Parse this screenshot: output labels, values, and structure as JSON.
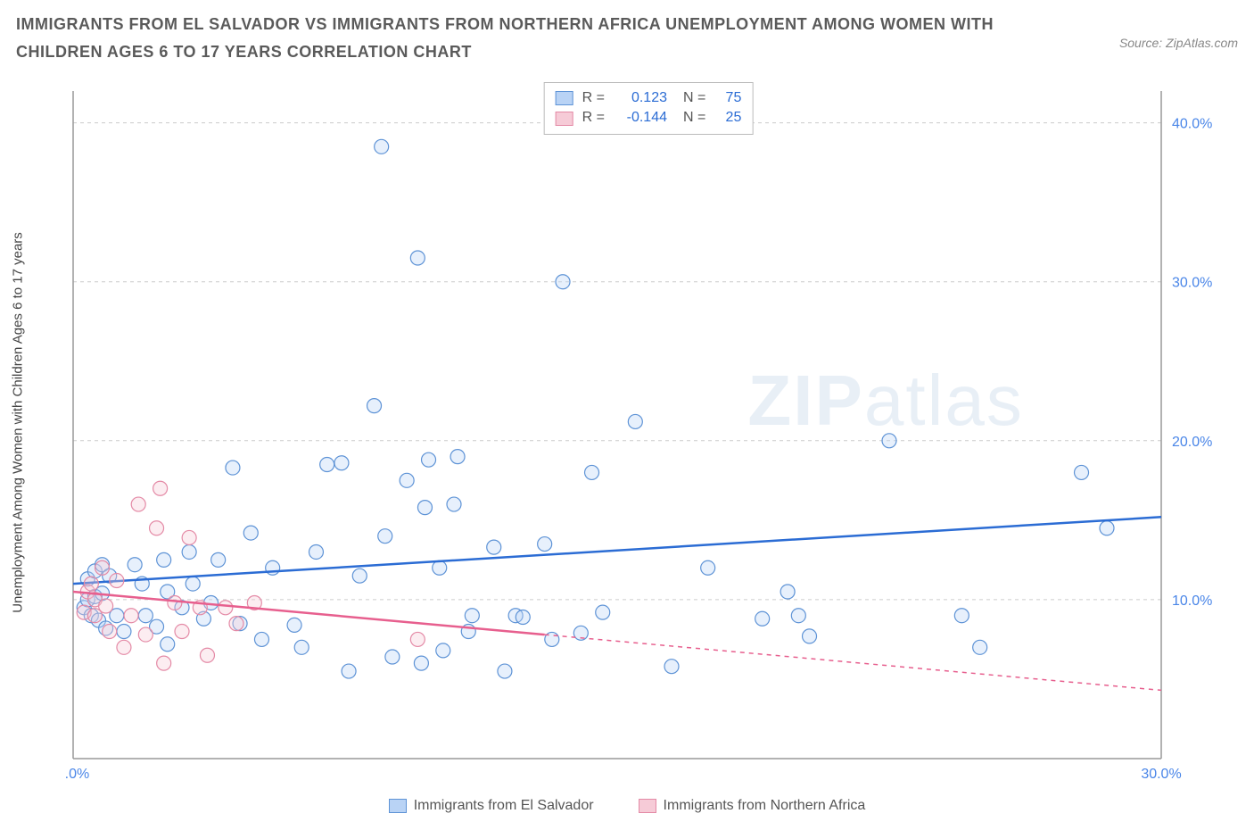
{
  "title": "IMMIGRANTS FROM EL SALVADOR VS IMMIGRANTS FROM NORTHERN AFRICA UNEMPLOYMENT AMONG WOMEN WITH CHILDREN AGES 6 TO 17 YEARS CORRELATION CHART",
  "source_label": "Source: ZipAtlas.com",
  "y_axis_label": "Unemployment Among Women with Children Ages 6 to 17 years",
  "watermark_bold": "ZIP",
  "watermark_light": "atlas",
  "chart": {
    "type": "scatter",
    "xlim": [
      0,
      30
    ],
    "ylim": [
      0,
      42
    ],
    "x_ticks": [
      {
        "v": 0,
        "l": "0.0%"
      },
      {
        "v": 30,
        "l": "30.0%"
      }
    ],
    "y_ticks": [
      {
        "v": 10,
        "l": "10.0%"
      },
      {
        "v": 20,
        "l": "20.0%"
      },
      {
        "v": 30,
        "l": "30.0%"
      },
      {
        "v": 40,
        "l": "40.0%"
      }
    ],
    "y_grid": [
      10,
      20,
      30,
      40
    ],
    "background_color": "#ffffff",
    "grid_color": "#cccccc",
    "axis_color": "#999999",
    "tick_label_color": "#4a86e8",
    "marker_radius": 8,
    "series": [
      {
        "key": "salvador",
        "label": "Immigrants from El Salvador",
        "fill": "#b9d3f5",
        "stroke": "#5e93d6",
        "R": "0.123",
        "N": "75",
        "trend_color": "#2b6cd4",
        "trend": {
          "x0": 0,
          "y0": 11.0,
          "x_solid_end": 30,
          "y_solid_end": 15.2,
          "x1": 30,
          "y1": 15.2,
          "dash_beyond": false
        },
        "points": [
          [
            0.3,
            9.5
          ],
          [
            0.4,
            10.0
          ],
          [
            0.4,
            11.3
          ],
          [
            0.5,
            9.0
          ],
          [
            0.6,
            10.2
          ],
          [
            0.6,
            11.8
          ],
          [
            0.7,
            8.7
          ],
          [
            0.8,
            12.2
          ],
          [
            0.8,
            10.4
          ],
          [
            0.9,
            8.2
          ],
          [
            1.0,
            11.5
          ],
          [
            1.2,
            9.0
          ],
          [
            1.4,
            8.0
          ],
          [
            1.7,
            12.2
          ],
          [
            1.9,
            11.0
          ],
          [
            2.0,
            9.0
          ],
          [
            2.3,
            8.3
          ],
          [
            2.5,
            12.5
          ],
          [
            2.6,
            10.5
          ],
          [
            2.6,
            7.2
          ],
          [
            3.0,
            9.5
          ],
          [
            3.2,
            13.0
          ],
          [
            3.3,
            11.0
          ],
          [
            3.6,
            8.8
          ],
          [
            3.8,
            9.8
          ],
          [
            4.0,
            12.5
          ],
          [
            4.4,
            18.3
          ],
          [
            4.6,
            8.5
          ],
          [
            4.9,
            14.2
          ],
          [
            5.2,
            7.5
          ],
          [
            5.5,
            12.0
          ],
          [
            6.1,
            8.4
          ],
          [
            6.3,
            7.0
          ],
          [
            6.7,
            13.0
          ],
          [
            7.0,
            18.5
          ],
          [
            7.4,
            18.6
          ],
          [
            7.6,
            5.5
          ],
          [
            7.9,
            11.5
          ],
          [
            8.3,
            22.2
          ],
          [
            8.6,
            14.0
          ],
          [
            8.8,
            6.4
          ],
          [
            8.5,
            38.5
          ],
          [
            9.2,
            17.5
          ],
          [
            9.6,
            6.0
          ],
          [
            9.7,
            15.8
          ],
          [
            9.8,
            18.8
          ],
          [
            9.5,
            31.5
          ],
          [
            10.1,
            12.0
          ],
          [
            10.2,
            6.8
          ],
          [
            10.5,
            16.0
          ],
          [
            10.6,
            19.0
          ],
          [
            10.9,
            8.0
          ],
          [
            11.0,
            9.0
          ],
          [
            11.6,
            13.3
          ],
          [
            11.9,
            5.5
          ],
          [
            12.2,
            9.0
          ],
          [
            12.4,
            8.9
          ],
          [
            13.0,
            13.5
          ],
          [
            13.2,
            7.5
          ],
          [
            13.5,
            30.0
          ],
          [
            14.0,
            7.9
          ],
          [
            14.3,
            18.0
          ],
          [
            14.6,
            9.2
          ],
          [
            15.5,
            21.2
          ],
          [
            16.5,
            5.8
          ],
          [
            17.5,
            12.0
          ],
          [
            19.0,
            8.8
          ],
          [
            19.7,
            10.5
          ],
          [
            20.0,
            9.0
          ],
          [
            20.3,
            7.7
          ],
          [
            22.5,
            20.0
          ],
          [
            24.5,
            9.0
          ],
          [
            25.0,
            7.0
          ],
          [
            27.8,
            18.0
          ],
          [
            28.5,
            14.5
          ]
        ]
      },
      {
        "key": "nafrica",
        "label": "Immigrants from Northern Africa",
        "fill": "#f6cbd7",
        "stroke": "#e48aa6",
        "R": "-0.144",
        "N": "25",
        "trend_color": "#e75f8e",
        "trend": {
          "x0": 0,
          "y0": 10.5,
          "x_solid_end": 13,
          "y_solid_end": 7.8,
          "x1": 30,
          "y1": 4.3,
          "dash_beyond": true
        },
        "points": [
          [
            0.3,
            9.2
          ],
          [
            0.4,
            10.5
          ],
          [
            0.5,
            11.0
          ],
          [
            0.6,
            9.0
          ],
          [
            0.6,
            10.0
          ],
          [
            0.8,
            12.0
          ],
          [
            0.9,
            9.6
          ],
          [
            1.0,
            8.0
          ],
          [
            1.2,
            11.2
          ],
          [
            1.4,
            7.0
          ],
          [
            1.6,
            9.0
          ],
          [
            1.8,
            16.0
          ],
          [
            2.0,
            7.8
          ],
          [
            2.3,
            14.5
          ],
          [
            2.4,
            17.0
          ],
          [
            2.5,
            6.0
          ],
          [
            2.8,
            9.8
          ],
          [
            3.0,
            8.0
          ],
          [
            3.2,
            13.9
          ],
          [
            3.5,
            9.5
          ],
          [
            3.7,
            6.5
          ],
          [
            4.2,
            9.5
          ],
          [
            4.5,
            8.5
          ],
          [
            5.0,
            9.8
          ],
          [
            9.5,
            7.5
          ]
        ]
      }
    ]
  },
  "stats_legend": {
    "r_label": "R =",
    "n_label": "N ="
  }
}
